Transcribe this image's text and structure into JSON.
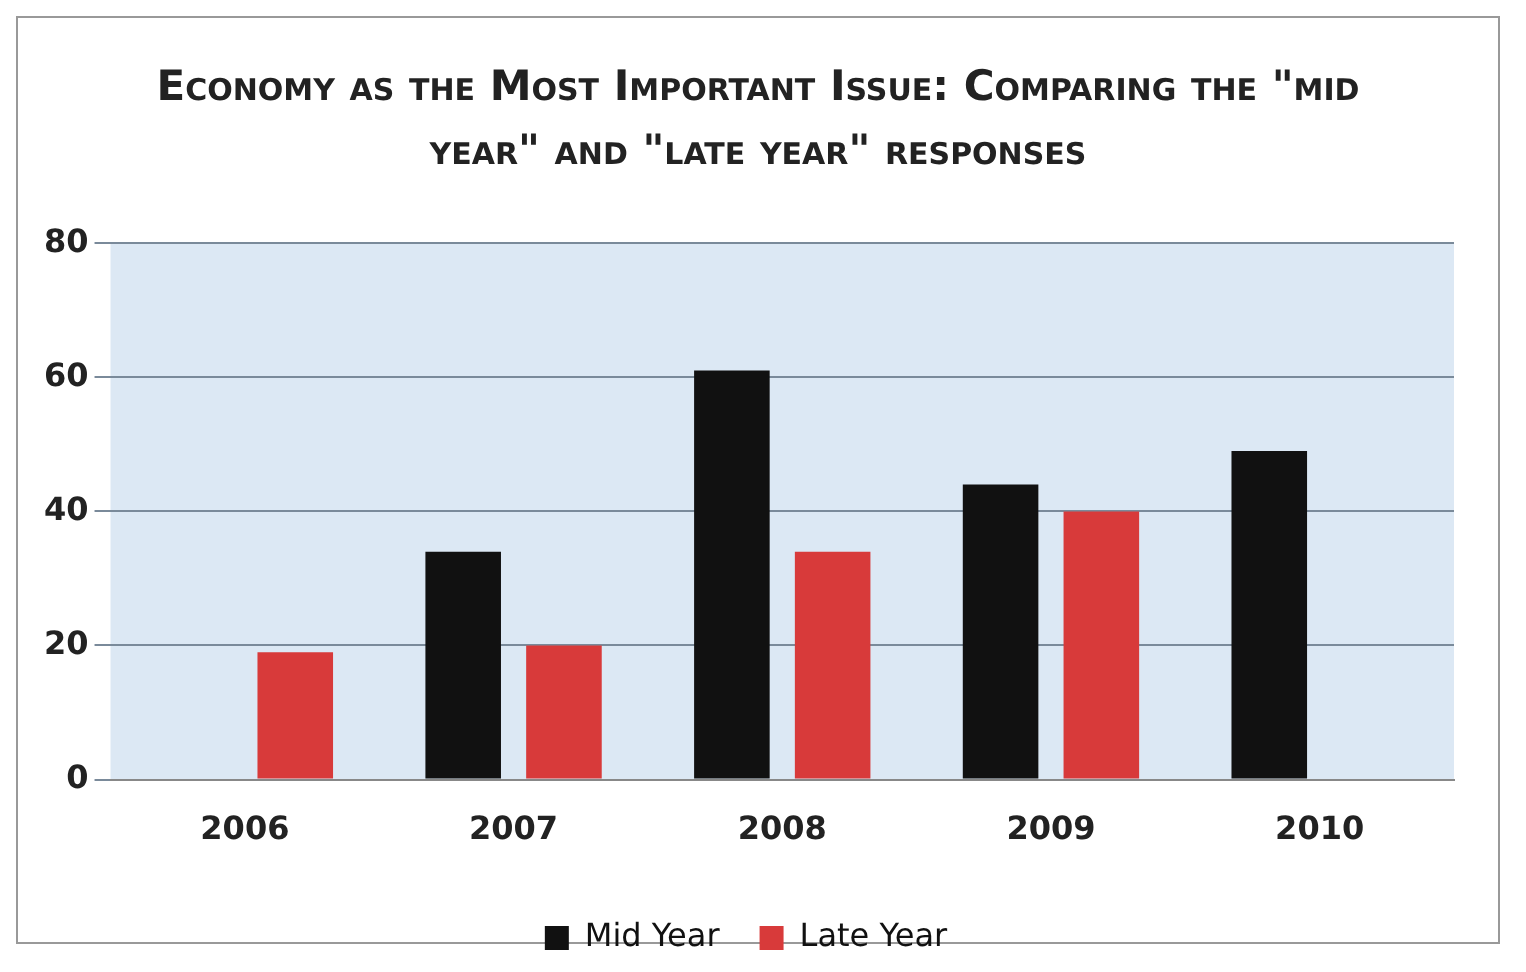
{
  "chart_data": {
    "type": "bar",
    "title": "Economy as the Most Important Issue: Comparing the \"mid year\" and \"late year\" responses",
    "categories": [
      "2006",
      "2007",
      "2008",
      "2009",
      "2010"
    ],
    "series": [
      {
        "name": "Mid Year",
        "color": "#111111",
        "values": [
          null,
          34,
          61,
          44,
          49
        ]
      },
      {
        "name": "Late Year",
        "color": "#d83a3a",
        "values": [
          19,
          20,
          34,
          40,
          null
        ]
      }
    ],
    "ylim": [
      0,
      80
    ],
    "yticks": [
      0,
      20,
      40,
      60,
      80
    ],
    "grid": "y",
    "legend": "bottom"
  }
}
